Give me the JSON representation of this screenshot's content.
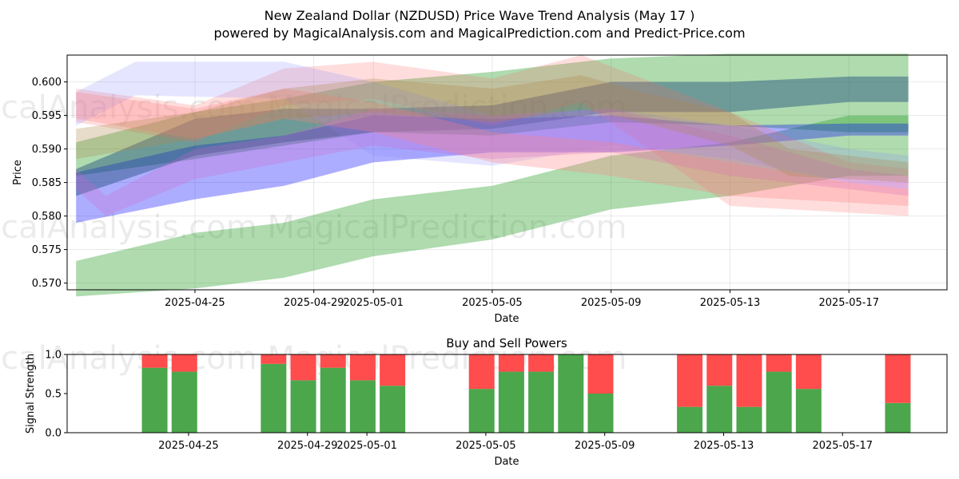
{
  "chart_data": [
    {
      "type": "area",
      "title": "New Zealand Dollar (NZDUSD) Price Wave Trend Analysis (May 17 )",
      "subtitle": "powered by MagicalAnalysis.com and MagicalPrediction.com and Predict-Price.com",
      "xlabel": "Date",
      "ylabel": "Price",
      "xlim": [
        "2025-04-21",
        "2025-05-19"
      ],
      "ylim": [
        0.569,
        0.604
      ],
      "x_ticks": [
        "2025-04-25",
        "2025-04-29",
        "2025-05-01",
        "2025-05-05",
        "2025-05-09",
        "2025-05-13",
        "2025-05-17"
      ],
      "y_ticks": [
        0.57,
        0.575,
        0.58,
        0.585,
        0.59,
        0.595,
        0.6
      ],
      "grid": true,
      "watermark": "MagicalAnalysis.com   MagicalPrediction.com",
      "series": [
        {
          "color": "#2ca02c",
          "opacity": 0.38,
          "x": [
            "2025-04-21",
            "2025-04-25",
            "2025-04-28",
            "2025-05-01",
            "2025-05-05",
            "2025-05-09",
            "2025-05-13",
            "2025-05-17",
            "2025-05-19"
          ],
          "upper": [
            0.5733,
            0.5775,
            0.579,
            0.5825,
            0.5845,
            0.589,
            0.591,
            0.595,
            0.595
          ],
          "lower": [
            0.568,
            0.5692,
            0.5708,
            0.574,
            0.5765,
            0.581,
            0.583,
            0.586,
            0.586
          ]
        },
        {
          "color": "#2ca02c",
          "opacity": 0.38,
          "x": [
            "2025-04-21",
            "2025-04-25",
            "2025-04-28",
            "2025-05-01",
            "2025-05-05",
            "2025-05-09",
            "2025-05-13",
            "2025-05-17",
            "2025-05-19"
          ],
          "upper": [
            0.591,
            0.5955,
            0.5975,
            0.6,
            0.6015,
            0.6035,
            0.6042,
            0.6042,
            0.6042
          ],
          "lower": [
            0.586,
            0.5885,
            0.5905,
            0.5925,
            0.592,
            0.594,
            0.5935,
            0.5925,
            0.5925
          ]
        },
        {
          "color": "#0000ff",
          "opacity": 0.32,
          "x": [
            "2025-04-21",
            "2025-04-25",
            "2025-04-28",
            "2025-05-01",
            "2025-05-05",
            "2025-05-09",
            "2025-05-13",
            "2025-05-17",
            "2025-05-19"
          ],
          "upper": [
            0.5865,
            0.5905,
            0.592,
            0.595,
            0.5945,
            0.595,
            0.5935,
            0.5938,
            0.5938
          ],
          "lower": [
            0.579,
            0.5825,
            0.5845,
            0.588,
            0.5895,
            0.5895,
            0.5905,
            0.592,
            0.592
          ]
        },
        {
          "color": "#1f4e79",
          "opacity": 0.45,
          "x": [
            "2025-04-21",
            "2025-04-25",
            "2025-04-28",
            "2025-05-01",
            "2025-05-05",
            "2025-05-09",
            "2025-05-13",
            "2025-05-17",
            "2025-05-19"
          ],
          "upper": [
            0.587,
            0.5945,
            0.596,
            0.596,
            0.5965,
            0.6,
            0.6,
            0.6008,
            0.6008
          ],
          "lower": [
            0.583,
            0.589,
            0.591,
            0.5925,
            0.593,
            0.5955,
            0.5955,
            0.597,
            0.597
          ]
        },
        {
          "color": "#ff6666",
          "opacity": 0.22,
          "x": [
            "2025-04-21",
            "2025-04-25",
            "2025-04-28",
            "2025-05-01",
            "2025-05-05",
            "2025-05-08",
            "2025-05-13",
            "2025-05-17",
            "2025-05-19"
          ],
          "upper": [
            0.599,
            0.5965,
            0.602,
            0.603,
            0.6005,
            0.604,
            0.5955,
            0.588,
            0.587
          ],
          "lower": [
            0.594,
            0.591,
            0.5965,
            0.5975,
            0.5935,
            0.597,
            0.5815,
            0.5805,
            0.58
          ]
        },
        {
          "color": "#8888ff",
          "opacity": 0.22,
          "x": [
            "2025-04-21",
            "2025-04-23",
            "2025-04-28",
            "2025-05-01",
            "2025-05-05",
            "2025-05-09",
            "2025-05-13",
            "2025-05-17",
            "2025-05-19"
          ],
          "upper": [
            0.5985,
            0.603,
            0.603,
            0.6,
            0.595,
            0.596,
            0.5935,
            0.59,
            0.589
          ],
          "lower": [
            0.5935,
            0.598,
            0.5975,
            0.589,
            0.5875,
            0.5905,
            0.5885,
            0.585,
            0.584
          ]
        },
        {
          "color": "#cc66cc",
          "opacity": 0.28,
          "x": [
            "2025-04-21",
            "2025-04-22",
            "2025-04-25",
            "2025-04-28",
            "2025-05-01",
            "2025-05-05",
            "2025-05-09",
            "2025-05-13",
            "2025-05-17",
            "2025-05-19"
          ],
          "upper": [
            0.587,
            0.583,
            0.59,
            0.592,
            0.596,
            0.595,
            0.596,
            0.592,
            0.587,
            0.586
          ],
          "lower": [
            0.584,
            0.58,
            0.5855,
            0.588,
            0.5905,
            0.5885,
            0.5895,
            0.586,
            0.584,
            0.583
          ]
        },
        {
          "color": "#ff8080",
          "opacity": 0.3,
          "x": [
            "2025-04-21",
            "2025-04-25",
            "2025-04-28",
            "2025-05-01",
            "2025-05-05",
            "2025-05-09",
            "2025-05-13",
            "2025-05-17",
            "2025-05-19"
          ],
          "upper": [
            0.5985,
            0.596,
            0.599,
            0.597,
            0.5925,
            0.591,
            0.588,
            0.585,
            0.584
          ],
          "lower": [
            0.5945,
            0.5915,
            0.5945,
            0.5925,
            0.588,
            0.586,
            0.583,
            0.582,
            0.5815
          ]
        },
        {
          "color": "#b08850",
          "opacity": 0.3,
          "x": [
            "2025-04-21",
            "2025-04-25",
            "2025-04-28",
            "2025-05-01",
            "2025-05-05",
            "2025-05-08",
            "2025-05-10",
            "2025-05-13",
            "2025-05-15",
            "2025-05-17",
            "2025-05-19"
          ],
          "upper": [
            0.593,
            0.5955,
            0.599,
            0.6005,
            0.599,
            0.601,
            0.5985,
            0.5955,
            0.59,
            0.589,
            0.588
          ],
          "lower": [
            0.5885,
            0.5915,
            0.5945,
            0.5955,
            0.594,
            0.596,
            0.594,
            0.5905,
            0.586,
            0.5855,
            0.585
          ]
        }
      ]
    },
    {
      "type": "bar",
      "title": "Buy and Sell Powers",
      "xlabel": "Date",
      "ylabel": "Signal Strength",
      "ylim": [
        0,
        1
      ],
      "y_ticks": [
        "0.0",
        "0.5",
        "1.0"
      ],
      "x_ticks": [
        "2025-04-25",
        "2025-04-29",
        "2025-05-01",
        "2025-05-05",
        "2025-05-09",
        "2025-05-13",
        "2025-05-17"
      ],
      "buy_color": "#4ca64c",
      "sell_color": "#ff4c4c",
      "dates": [
        "2025-04-23",
        "2025-04-24",
        "2025-04-27",
        "2025-04-28",
        "2025-04-29",
        "2025-04-30",
        "2025-05-01",
        "2025-05-04",
        "2025-05-05",
        "2025-05-06",
        "2025-05-07",
        "2025-05-08",
        "2025-05-11",
        "2025-05-12",
        "2025-05-13",
        "2025-05-14",
        "2025-05-15",
        "2025-05-18"
      ],
      "buy": [
        0.83,
        0.78,
        0.88,
        0.67,
        0.83,
        0.67,
        0.6,
        0.56,
        0.78,
        0.78,
        1.0,
        0.5,
        0.33,
        0.6,
        0.33,
        0.78,
        0.56,
        0.38
      ]
    }
  ]
}
